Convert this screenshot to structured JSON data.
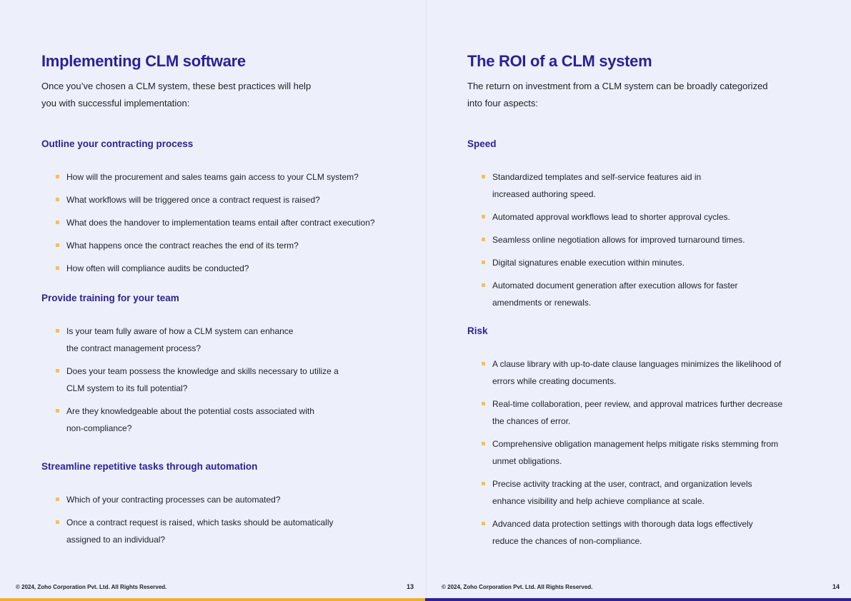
{
  "left": {
    "title": "Implementing CLM software",
    "intro": "Once you’ve chosen a CLM system, these best practices will help\nyou with successful implementation:",
    "sections": [
      {
        "heading": "Outline your contracting process",
        "items": [
          "How will the procurement and sales teams gain access to your CLM system?",
          "What workflows will be triggered once a contract request is raised?",
          "What does the handover to implementation teams entail after contract execution?",
          "What happens once the contract reaches the end of its term?",
          "How often will compliance audits be conducted?"
        ]
      },
      {
        "heading": "Provide training for your team",
        "items": [
          "Is your team fully aware of how a CLM system can enhance\nthe contract management process?",
          "Does your team possess the knowledge and skills necessary to utilize a\nCLM system to its full potential?",
          "Are they knowledgeable about the potential costs associated with\nnon-compliance?"
        ]
      },
      {
        "heading": "Streamline repetitive tasks through automation",
        "items": [
          "Which of your contracting processes can be automated?",
          "Once a contract request is raised, which tasks should be automatically\nassigned to an individual?"
        ]
      }
    ],
    "footer": "© 2024, Zoho Corporation Pvt. Ltd. All Rights Reserved.",
    "page_number": "13"
  },
  "right": {
    "title": "The ROI of a CLM system",
    "intro": "The return on investment from a CLM system can be broadly categorized\ninto four aspects:",
    "sections": [
      {
        "heading": "Speed",
        "items": [
          "Standardized templates and self-service features aid in\nincreased authoring speed.",
          "Automated approval workflows lead to shorter approval cycles.",
          "Seamless online negotiation allows for improved turnaround times.",
          "Digital signatures enable execution within minutes.",
          "Automated document generation after execution allows for faster\namendments or renewals."
        ]
      },
      {
        "heading": "Risk",
        "items": [
          "A clause library with up-to-date clause languages minimizes the likelihood of\nerrors while creating documents.",
          "Real-time collaboration, peer review, and approval matrices further decrease\nthe chances of error.",
          "Comprehensive obligation management helps mitigate risks stemming from\nunmet obligations.",
          "Precise activity tracking at the user, contract, and organization levels\nenhance visibility and help achieve compliance at scale.",
          "Advanced data protection settings with thorough data logs effectively\nreduce the chances of non-compliance."
        ]
      }
    ],
    "footer": "© 2024, Zoho Corporation Pvt. Ltd. All Rights Reserved.",
    "page_number": "14"
  },
  "colors": {
    "accent": "#2a1f9c",
    "bullet": "#f6c24b",
    "left_bar": "#f5b01c",
    "right_bar": "#2f1f9a",
    "background": "#edf0fa"
  }
}
